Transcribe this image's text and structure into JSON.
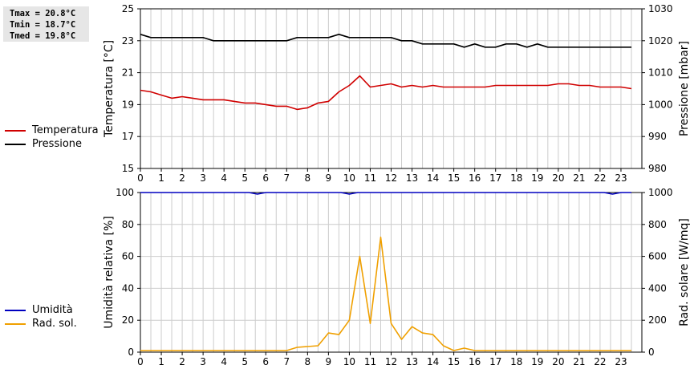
{
  "stats": {
    "tmax": "Tmax = 20.8°C",
    "tmin": "Tmin = 18.7°C",
    "tmed": "Tmed = 19.8°C"
  },
  "legend_top": [
    {
      "label": "Temperatura",
      "color": "#d00000"
    },
    {
      "label": "Pressione",
      "color": "#000000"
    }
  ],
  "legend_bottom": [
    {
      "label": "Umidità",
      "color": "#0000c0"
    },
    {
      "label": "Rad. sol.",
      "color": "#f0a000"
    }
  ],
  "chart_data": [
    {
      "type": "line",
      "ylabel": "Temperatura [°C]",
      "y2label": "Pressione [mbar]",
      "xlim": [
        0,
        24
      ],
      "ylim": [
        15,
        25
      ],
      "y2lim": [
        980,
        1030
      ],
      "xticks": [
        0,
        1,
        2,
        3,
        4,
        5,
        6,
        7,
        8,
        9,
        10,
        11,
        12,
        13,
        14,
        15,
        16,
        17,
        18,
        19,
        20,
        21,
        22,
        23
      ],
      "yticks": [
        15,
        17,
        19,
        21,
        23,
        25
      ],
      "y2ticks": [
        980,
        990,
        1000,
        1010,
        1020,
        1030
      ],
      "grid": true,
      "series": [
        {
          "name": "Temperatura",
          "axis": "left",
          "color": "#d00000",
          "x": [
            0,
            0.5,
            1,
            1.5,
            2,
            2.5,
            3,
            3.5,
            4,
            4.5,
            5,
            5.5,
            6,
            6.5,
            7,
            7.5,
            8,
            8.5,
            9,
            9.5,
            10,
            10.5,
            11,
            11.5,
            12,
            12.5,
            13,
            13.5,
            14,
            14.5,
            15,
            15.5,
            16,
            16.5,
            17,
            17.5,
            18,
            18.5,
            19,
            19.5,
            20,
            20.5,
            21,
            21.5,
            22,
            22.5,
            23,
            23.5
          ],
          "values": [
            19.9,
            19.8,
            19.6,
            19.4,
            19.5,
            19.4,
            19.3,
            19.3,
            19.3,
            19.2,
            19.1,
            19.1,
            19.0,
            18.9,
            18.9,
            18.7,
            18.8,
            19.1,
            19.2,
            19.8,
            20.2,
            20.8,
            20.1,
            20.2,
            20.3,
            20.1,
            20.2,
            20.1,
            20.2,
            20.1,
            20.1,
            20.1,
            20.1,
            20.1,
            20.2,
            20.2,
            20.2,
            20.2,
            20.2,
            20.2,
            20.3,
            20.3,
            20.2,
            20.2,
            20.1,
            20.1,
            20.1,
            20.0
          ]
        },
        {
          "name": "Pressione",
          "axis": "right",
          "color": "#000000",
          "x": [
            0,
            0.5,
            1,
            1.5,
            2,
            2.5,
            3,
            3.5,
            4,
            4.5,
            5,
            5.5,
            6,
            6.5,
            7,
            7.5,
            8,
            8.5,
            9,
            9.5,
            10,
            10.5,
            11,
            11.5,
            12,
            12.5,
            13,
            13.5,
            14,
            14.5,
            15,
            15.5,
            16,
            16.5,
            17,
            17.5,
            18,
            18.5,
            19,
            19.5,
            20,
            20.5,
            21,
            21.5,
            22,
            22.5,
            23,
            23.5
          ],
          "values": [
            1022,
            1021,
            1021,
            1021,
            1021,
            1021,
            1021,
            1020,
            1020,
            1020,
            1020,
            1020,
            1020,
            1020,
            1020,
            1021,
            1021,
            1021,
            1021,
            1022,
            1021,
            1021,
            1021,
            1021,
            1021,
            1020,
            1020,
            1019,
            1019,
            1019,
            1019,
            1018,
            1019,
            1018,
            1018,
            1019,
            1019,
            1018,
            1019,
            1018,
            1018,
            1018,
            1018,
            1018,
            1018,
            1018,
            1018,
            1018
          ]
        }
      ]
    },
    {
      "type": "line",
      "ylabel": "Umidità relativa [%]",
      "y2label": "Rad. solare [W/mq]",
      "xlim": [
        0,
        24
      ],
      "ylim": [
        0,
        100
      ],
      "y2lim": [
        0,
        1000
      ],
      "xticks": [
        0,
        1,
        2,
        3,
        4,
        5,
        6,
        7,
        8,
        9,
        10,
        11,
        12,
        13,
        14,
        15,
        16,
        17,
        18,
        19,
        20,
        21,
        22,
        23
      ],
      "yticks": [
        0,
        20,
        40,
        60,
        80,
        100
      ],
      "y2ticks": [
        0,
        200,
        400,
        600,
        800,
        1000
      ],
      "grid": true,
      "series": [
        {
          "name": "Umidità",
          "axis": "left",
          "color": "#0000c0",
          "x": [
            0,
            1,
            2,
            3,
            4,
            5,
            5.2,
            5.6,
            6,
            6.5,
            7,
            8,
            9,
            9.6,
            10,
            10.4,
            11,
            12,
            13,
            14,
            15,
            16,
            17,
            18,
            19,
            20,
            21,
            22,
            22.2,
            22.6,
            23,
            23.5
          ],
          "values": [
            100,
            100,
            100,
            100,
            100,
            100,
            100,
            99,
            100,
            100,
            100,
            100,
            100,
            100,
            99,
            100,
            100,
            100,
            100,
            100,
            100,
            100,
            100,
            100,
            100,
            100,
            100,
            100,
            100,
            99,
            100,
            100
          ]
        },
        {
          "name": "Rad. sol.",
          "axis": "right",
          "color": "#f0a000",
          "x": [
            0,
            0.5,
            1,
            1.5,
            2,
            2.5,
            3,
            3.5,
            4,
            4.5,
            5,
            5.5,
            6,
            6.5,
            7,
            7.5,
            8,
            8.5,
            9,
            9.5,
            10,
            10.5,
            11,
            11.5,
            12,
            12.5,
            13,
            13.5,
            14,
            14.5,
            15,
            15.5,
            16,
            16.5,
            17,
            17.5,
            18,
            18.5,
            19,
            19.5,
            20,
            20.5,
            21,
            21.5,
            22,
            22.5,
            23,
            23.5
          ],
          "values": [
            10,
            10,
            10,
            10,
            10,
            10,
            10,
            10,
            10,
            10,
            10,
            10,
            10,
            10,
            10,
            30,
            35,
            40,
            120,
            110,
            200,
            600,
            180,
            720,
            180,
            80,
            160,
            120,
            110,
            40,
            10,
            25,
            10,
            10,
            10,
            10,
            10,
            10,
            10,
            10,
            10,
            10,
            10,
            10,
            10,
            10,
            10,
            10
          ]
        }
      ]
    }
  ]
}
